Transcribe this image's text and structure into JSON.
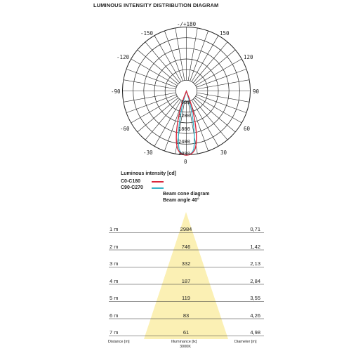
{
  "title": "LUMINOUS INTENSITY DISTRIBUTION DIAGRAM",
  "polar": {
    "angle_labels": {
      "top": "-/+180",
      "upper_left": "-150",
      "upper_right": "150",
      "mid_upper_left": "-120",
      "mid_upper_right": "120",
      "left": "-90",
      "right": "90",
      "mid_lower_left": "-60",
      "mid_lower_right": "60",
      "lower_left": "-30",
      "lower_right": "30",
      "bottom": "0"
    },
    "ring_labels": [
      "600",
      "1200",
      "1800",
      "2400",
      "3000"
    ]
  },
  "legend": {
    "title": "Luminous intensity [cd]",
    "items": [
      {
        "label": "C0-C180",
        "color": "#d8283c"
      },
      {
        "label": "C90-C270",
        "color": "#35b3c9"
      }
    ]
  },
  "beam_cone": {
    "title": "Beam cone diagram",
    "subtitle": "Beam angle 40°",
    "rows": [
      {
        "distance": "1 m",
        "illuminance": "2984",
        "diameter": "0,71"
      },
      {
        "distance": "2 m",
        "illuminance": "746",
        "diameter": "1,42"
      },
      {
        "distance": "3 m",
        "illuminance": "332",
        "diameter": "2,13"
      },
      {
        "distance": "4 m",
        "illuminance": "187",
        "diameter": "2,84"
      },
      {
        "distance": "5 m",
        "illuminance": "119",
        "diameter": "3,55"
      },
      {
        "distance": "6 m",
        "illuminance": "83",
        "diameter": "4,26"
      },
      {
        "distance": "7 m",
        "illuminance": "61",
        "diameter": "4,98"
      }
    ],
    "footer": {
      "distance": "Distance [m]",
      "illuminance": "Illuminance [lx]",
      "cct": "3000K",
      "diameter": "Diameter [m]"
    },
    "cone_color": "#fbf0b4"
  }
}
